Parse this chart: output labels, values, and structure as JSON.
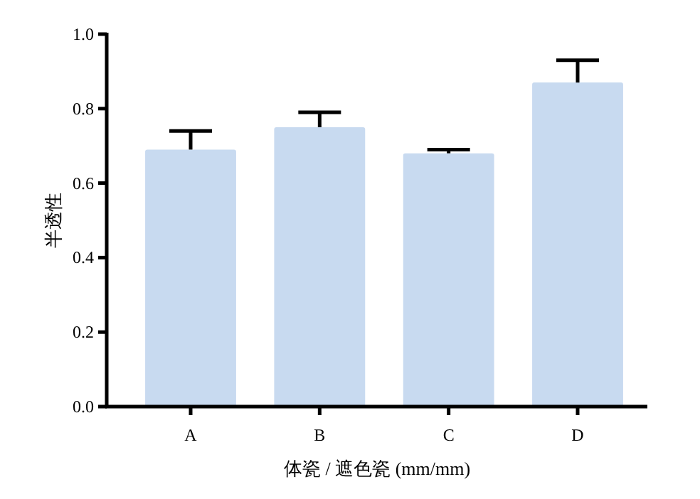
{
  "chart_data": {
    "type": "bar",
    "xlabel": "体瓷 / 遮色瓷 (mm/mm)",
    "ylabel": "半透性",
    "categories": [
      "A",
      "B",
      "C",
      "D"
    ],
    "values": [
      0.69,
      0.75,
      0.68,
      0.87
    ],
    "errors": [
      [
        0.69,
        0.74
      ],
      [
        0.75,
        0.79
      ],
      [
        0.68,
        0.69
      ],
      [
        0.87,
        0.93
      ]
    ],
    "color": "#c8daf0",
    "ylim": [
      0,
      1
    ],
    "yticks": [
      {
        "value": 0,
        "label": "0.0"
      },
      {
        "value": 0.2,
        "label": "0.2"
      },
      {
        "value": 0.4,
        "label": "0.4"
      },
      {
        "value": 0.6,
        "label": "0.6"
      },
      {
        "value": 0.8,
        "label": "0.8"
      },
      {
        "value": 1,
        "label": "1.0"
      }
    ],
    "grid": false
  }
}
